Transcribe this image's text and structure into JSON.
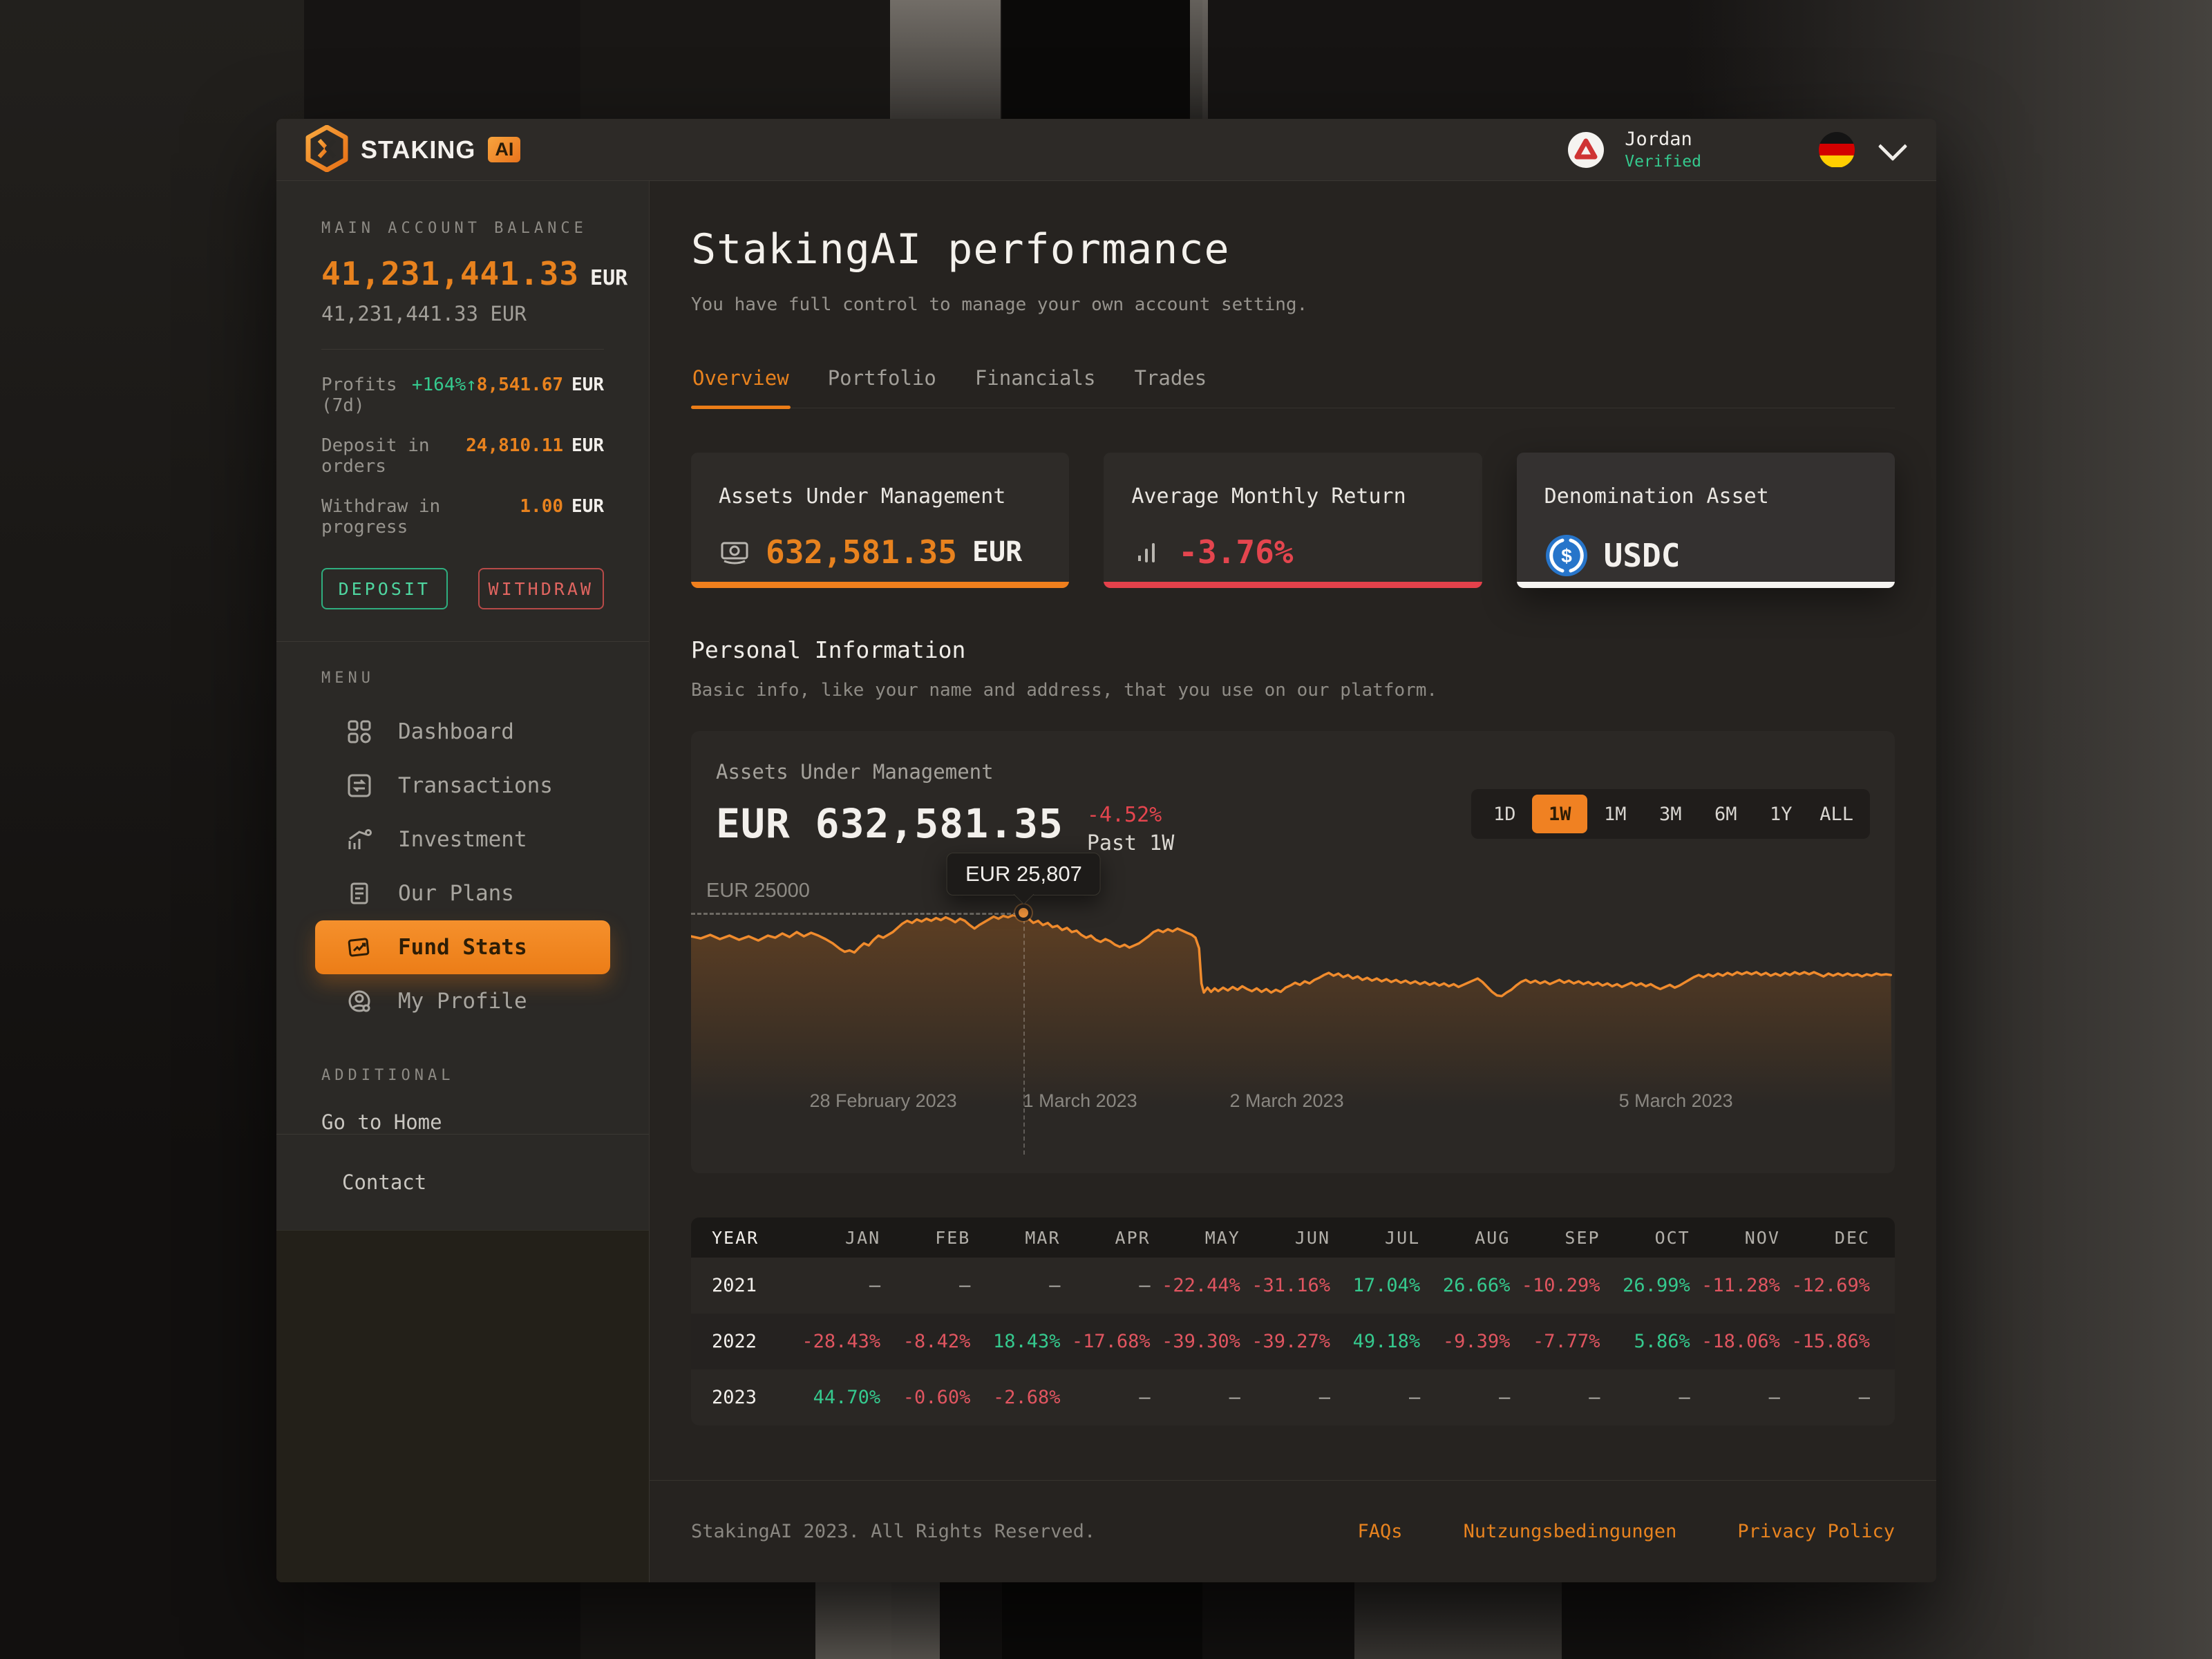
{
  "header": {
    "brand": "STAKING",
    "brand_badge": "AI",
    "user_name": "Jordan",
    "user_status": "Verified",
    "flag": "germany-flag"
  },
  "sidebar": {
    "balance_label": "MAIN ACCOUNT BALANCE",
    "balance_value": "41,231,441.33",
    "balance_currency": "EUR",
    "balance_secondary": "41,231,441.33 EUR",
    "stats": [
      {
        "label": "Profits (7d)",
        "delta": "+164%↑",
        "value": "8,541.67",
        "currency": "EUR"
      },
      {
        "label": "Deposit in orders",
        "delta": "",
        "value": "24,810.11",
        "currency": "EUR"
      },
      {
        "label": "Withdraw in progress",
        "delta": "",
        "value": "1.00",
        "currency": "EUR"
      }
    ],
    "deposit_button": "DEPOSIT",
    "withdraw_button": "WITHDRAW",
    "menu_label": "MENU",
    "menu": [
      {
        "label": "Dashboard",
        "icon": "dashboard-icon",
        "active": false
      },
      {
        "label": "Transactions",
        "icon": "transactions-icon",
        "active": false
      },
      {
        "label": "Investment",
        "icon": "investment-icon",
        "active": false
      },
      {
        "label": "Our Plans",
        "icon": "plans-icon",
        "active": false
      },
      {
        "label": "Fund Stats",
        "icon": "fund-stats-icon",
        "active": true
      },
      {
        "label": "My Profile",
        "icon": "profile-icon",
        "active": false
      }
    ],
    "additional_label": "ADDITIONAL",
    "go_home": "Go to Home",
    "contact": "Contact"
  },
  "main": {
    "title": "StakingAI performance",
    "subtitle": "You have full control to manage your own account setting.",
    "tabs": [
      {
        "label": "Overview",
        "active": true
      },
      {
        "label": "Portfolio",
        "active": false
      },
      {
        "label": "Financials",
        "active": false
      },
      {
        "label": "Trades",
        "active": false
      }
    ],
    "cards": [
      {
        "title": "Assets Under Management",
        "icon": "banknote-icon",
        "value": "632,581.35",
        "suffix": "EUR",
        "accent": "#ef7f1d"
      },
      {
        "title": "Average Monthly Return",
        "icon": "bar-chart-icon",
        "value": "-3.76%",
        "suffix": "",
        "accent": "#e4414b"
      },
      {
        "title": "Denomination Asset",
        "icon": "usdc-icon",
        "value": "USDC",
        "suffix": "",
        "accent": "#f6f4f1"
      }
    ],
    "section_title": "Personal Information",
    "section_subtitle": "Basic info, like your name and address, that you use on our platform."
  },
  "chart_data": {
    "type": "line",
    "title": "Assets Under Management",
    "current_value": "EUR 632,581.35",
    "change": "-4.52%",
    "period": "Past 1W",
    "line_color": "#f08b2d",
    "gridline_label": "EUR 25000",
    "gridline_value": 25000,
    "tooltip": "EUR 25,807",
    "tooltip_value": 25807,
    "marker_pct": 27.7,
    "ranges": [
      "1D",
      "1W",
      "1M",
      "3M",
      "6M",
      "1Y",
      "ALL"
    ],
    "active_range": "1W",
    "x_labels": [
      {
        "text": "28 February 2023",
        "pct": 16
      },
      {
        "text": "1 March 2023",
        "pct": 32.4
      },
      {
        "text": "2 March 2023",
        "pct": 49.6
      },
      {
        "text": "5 March 2023",
        "pct": 82
      }
    ],
    "sparkline": "0,58 8,61 16,56 24,62 32,57 40,63 48,58 56,64 64,57 70,60 76,54 82,59 88,52 94,58 100,53 106,57 112,62 118,68 124,76 128,80 132,78 136,81 140,74 144,68 148,71 152,63 156,57 160,60 164,56 168,52 172,46 176,40 180,36 184,39 188,34 192,37 196,33 200,36 204,32 208,35 212,31 216,34 220,38 224,33 228,36 232,42 236,47 240,42 244,38 248,34 252,30 256,33 260,29 264,31 268,28 272,29 277,25 281,33 285,39 289,36 293,42 297,39 301,45 305,43 309,49 313,46 317,52 321,50 325,56 329,60 333,57 337,63 341,66 345,62 349,65 353,70 357,73 361,70 365,74 369,71 373,68 377,63 381,58 385,52 389,49 393,52 397,48 401,51 405,47 409,50 413,53 417,56 420,60 423,75 425,125 427,138 430,131 433,137 436,132 439,136 443,131 447,135 451,130 455,134 459,129 463,133 467,136 471,132 475,137 479,133 483,138 487,134 491,137 495,131 499,128 503,124 507,127 511,122 515,125 519,120 523,117 527,113 531,110 535,114 539,111 543,116 547,113 551,118 555,115 559,120 563,117 567,121 571,118 575,122 579,119 583,123 587,120 591,124 595,121 599,125 603,122 607,126 611,123 615,127 619,124 623,128 627,125 631,129 635,126 639,130 643,127 647,124 651,121 655,118 659,123 663,130 667,137 671,142 675,143 679,138 683,134 687,128 691,123 695,120 699,124 703,121 707,125 711,122 715,126 719,123 723,120 727,124 731,121 735,125 739,122 743,126 747,123 751,127 755,124 759,128 763,125 767,129 771,126 775,130 779,127 783,124 787,128 791,125 795,129 799,126 803,130 807,133 811,130 815,127 819,131 823,128 827,124 831,120 835,116 839,113 843,116 847,112 851,115 855,111 859,114 863,110 867,113 871,109 875,112 879,109 883,112 887,109 891,113 895,110 899,114 903,111 907,114 911,110 915,113 919,109 923,112 927,109 931,112 935,109 939,112 943,115 947,111 951,114 955,111 959,114 963,111 967,114 971,112 975,115 979,112 983,114 987,111 991,113 995,112 999,113"
  },
  "table": {
    "headers": [
      "YEAR",
      "JAN",
      "FEB",
      "MAR",
      "APR",
      "MAY",
      "JUN",
      "JUL",
      "AUG",
      "SEP",
      "OCT",
      "NOV",
      "DEC"
    ],
    "rows": [
      {
        "year": "2021",
        "values": [
          "–",
          "–",
          "–",
          "–",
          "-22.44%",
          "-31.16%",
          "17.04%",
          "26.66%",
          "-10.29%",
          "26.99%",
          "-11.28%",
          "-12.69%"
        ]
      },
      {
        "year": "2022",
        "values": [
          "-28.43%",
          "-8.42%",
          "18.43%",
          "-17.68%",
          "-39.30%",
          "-39.27%",
          "49.18%",
          "-9.39%",
          "-7.77%",
          "5.86%",
          "-18.06%",
          "-15.86%"
        ]
      },
      {
        "year": "2023",
        "values": [
          "44.70%",
          "-0.60%",
          "-2.68%",
          "–",
          "–",
          "–",
          "–",
          "–",
          "–",
          "–",
          "–",
          "–"
        ]
      }
    ]
  },
  "footer": {
    "copyright": "StakingAI 2023. All Rights Reserved.",
    "links": [
      "FAQs",
      "Nutzungsbedingungen",
      "Privacy Policy"
    ]
  },
  "colors": {
    "accent_orange": "#ec7d17",
    "positive_green": "#35c98e",
    "negative_red": "#e4454e",
    "sidebar_bg": "#2b2926",
    "main_bg": "#262320"
  }
}
